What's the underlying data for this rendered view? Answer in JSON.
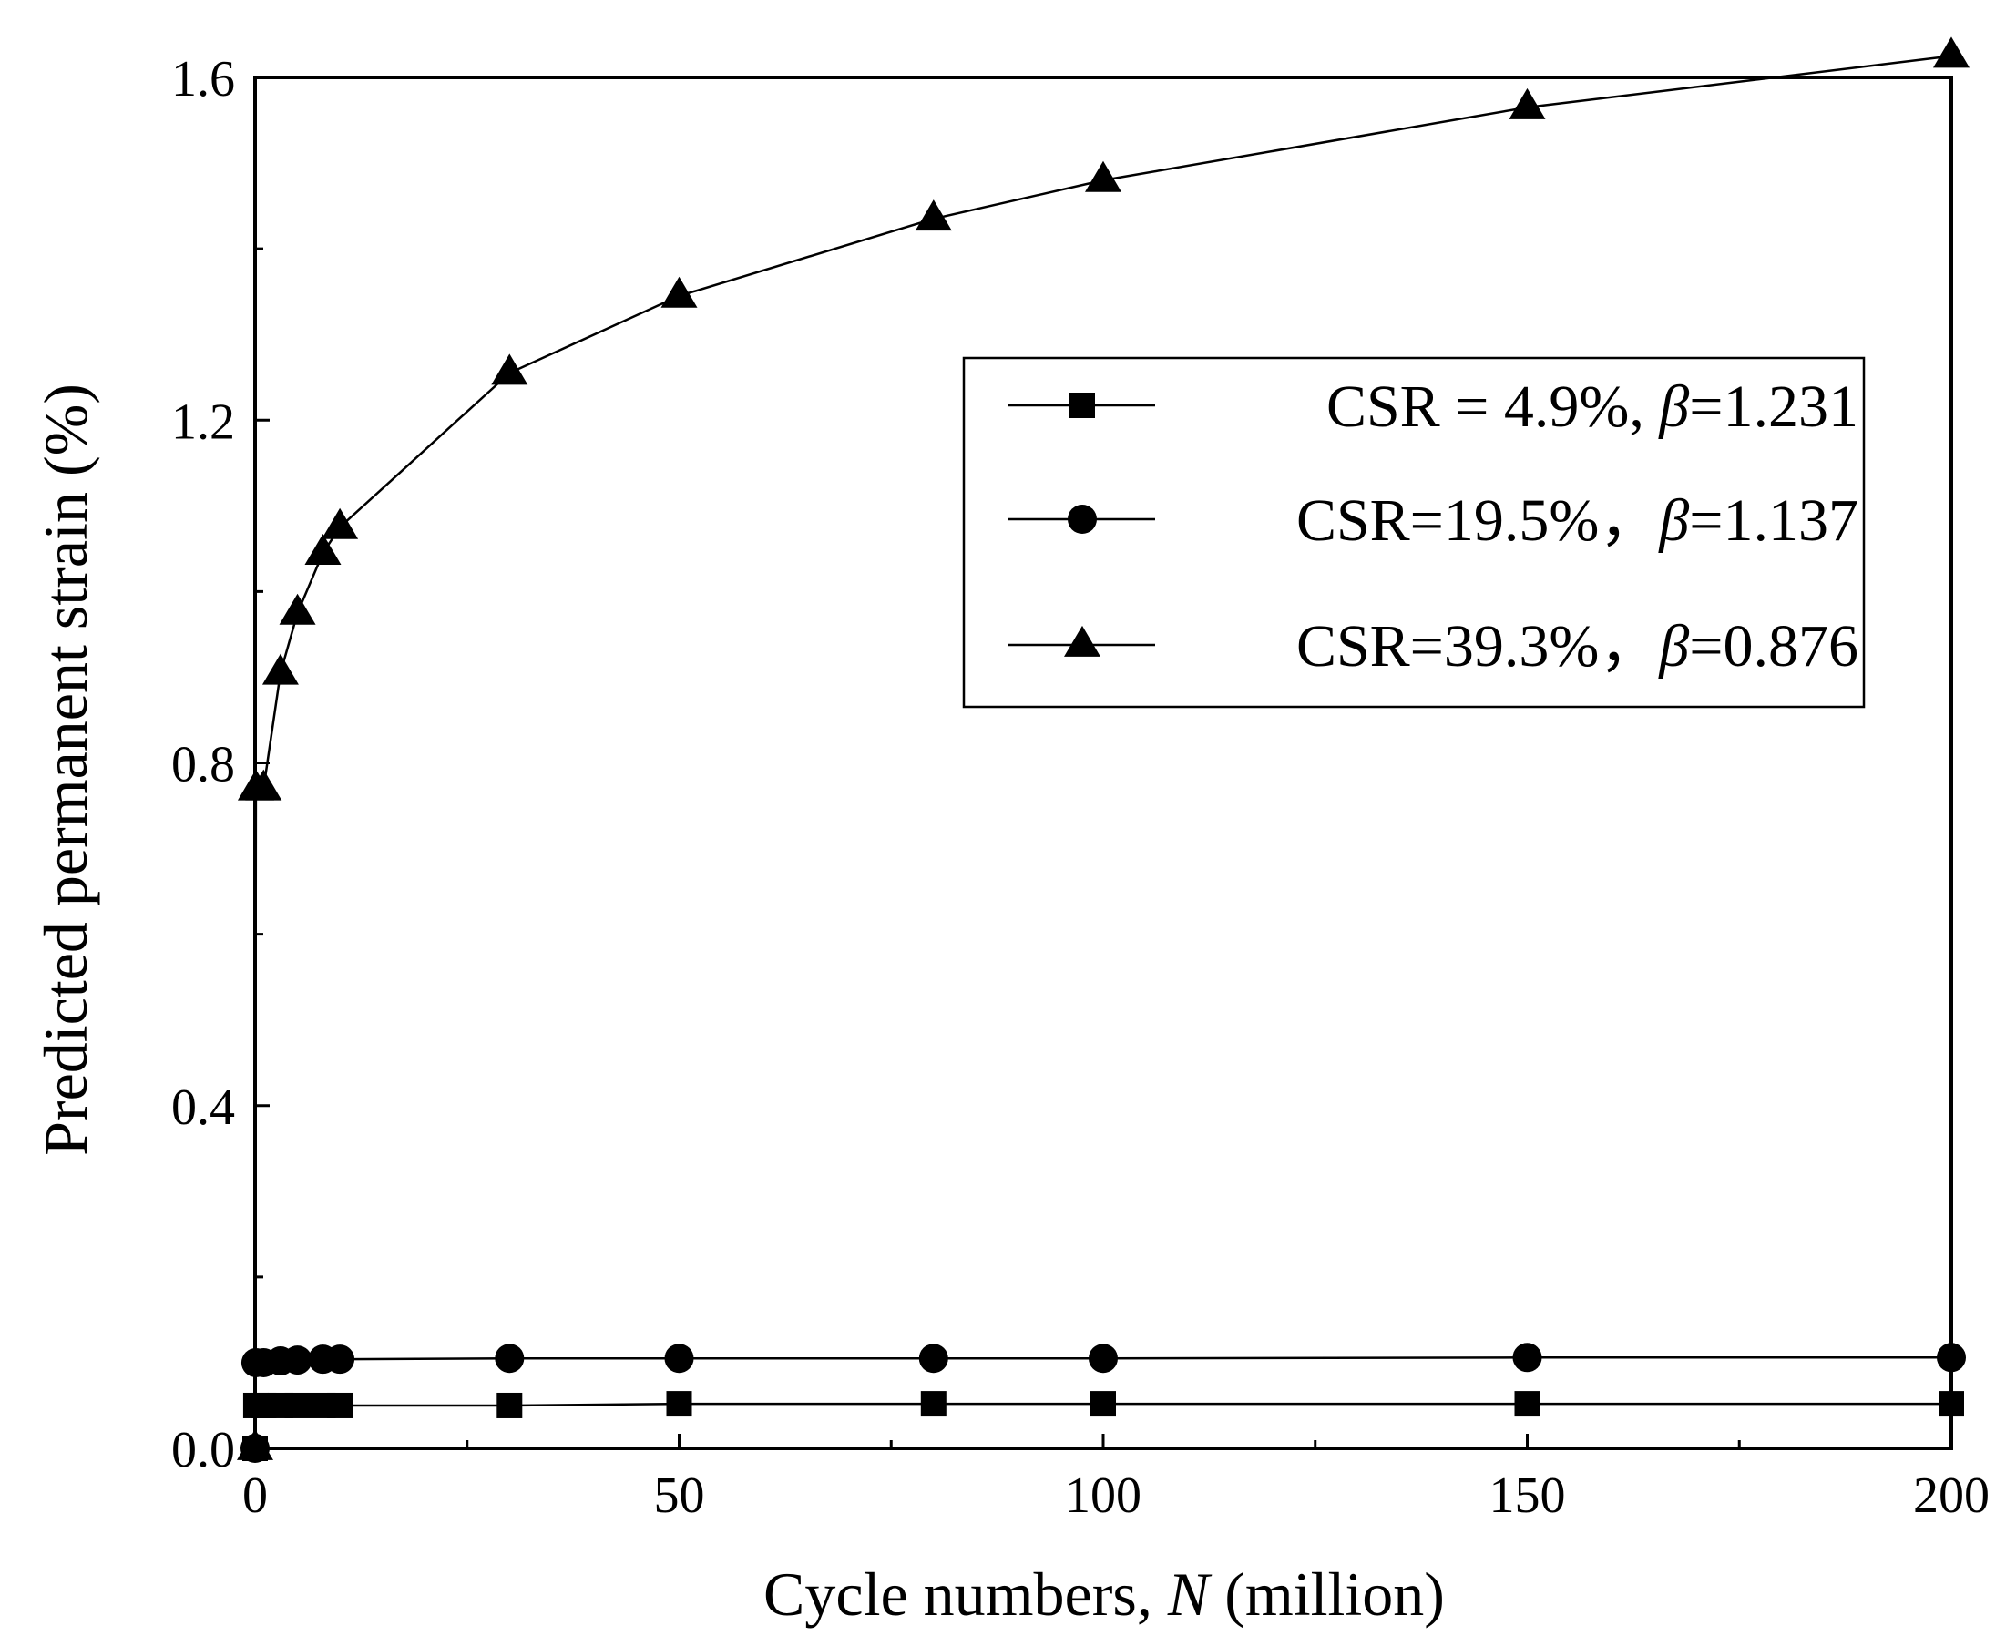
{
  "chart_data": {
    "type": "line",
    "title": "",
    "xlabel": {
      "prefix": "Cycle numbers, ",
      "italic": "N",
      "suffix": " (million)"
    },
    "ylabel": "Predicted permanent strain (%)",
    "xlim": [
      0,
      200
    ],
    "ylim": [
      0,
      1.6
    ],
    "x_major_ticks": [
      0,
      50,
      100,
      150,
      200
    ],
    "x_tick_labels": [
      "0",
      "50",
      "100",
      "150",
      "200"
    ],
    "x_minor_ticks": [
      25,
      75,
      125,
      175
    ],
    "y_major_ticks": [
      0,
      0.4,
      0.8,
      1.2,
      1.6
    ],
    "y_tick_labels": [
      "0.0",
      "0.4",
      "0.8",
      "1.2",
      "1.6"
    ],
    "y_minor_ticks": [
      0.2,
      0.6,
      1.0,
      1.4
    ],
    "grid": false,
    "legend_position": "upper-right",
    "x": [
      0,
      0.1,
      1,
      3,
      5,
      8,
      10,
      30,
      50,
      80,
      100,
      150,
      200
    ],
    "series": [
      {
        "name": "CSR = 4.9%",
        "beta_symbol": "β",
        "beta_value": "=1.231",
        "separator": ", ",
        "marker": "square",
        "values": [
          0,
          0.05,
          0.05,
          0.05,
          0.05,
          0.05,
          0.05,
          0.05,
          0.052,
          0.052,
          0.052,
          0.052,
          0.052
        ]
      },
      {
        "name": "CSR=19.5%",
        "beta_symbol": "β",
        "beta_value": "=1.137",
        "separator": "，",
        "marker": "circle",
        "values": [
          0,
          0.1,
          0.1,
          0.102,
          0.103,
          0.104,
          0.104,
          0.105,
          0.105,
          0.105,
          0.105,
          0.106,
          0.106
        ]
      },
      {
        "name": "CSR=39.3%",
        "beta_symbol": "β",
        "beta_value": "=0.876",
        "separator": "，",
        "marker": "triangle",
        "values": [
          0,
          0.77,
          0.77,
          0.905,
          0.975,
          1.045,
          1.075,
          1.255,
          1.345,
          1.435,
          1.48,
          1.565,
          1.625
        ]
      }
    ]
  }
}
